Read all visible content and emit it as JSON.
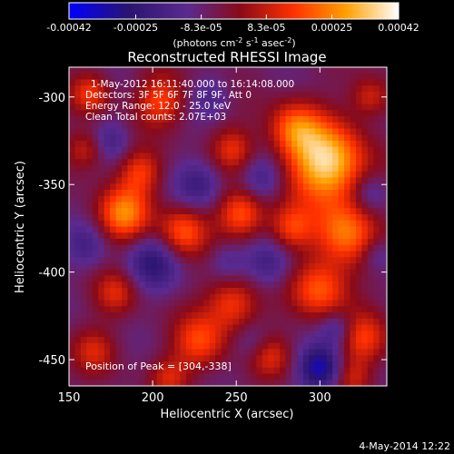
{
  "chart_data": {
    "type": "heatmap",
    "title": "Reconstructed RHESSI Image",
    "xlabel": "Heliocentric X (arcsec)",
    "ylabel": "Heliocentric Y (arcsec)",
    "xlim": [
      150,
      340
    ],
    "ylim": [
      -465,
      -283
    ],
    "x_ticks": [
      150,
      200,
      250,
      300
    ],
    "y_ticks": [
      -300,
      -350,
      -400,
      -450
    ],
    "colorbar": {
      "min": -0.00042,
      "max": 0.00042,
      "ticks": [
        -0.00042,
        -0.00025,
        -8.3e-05,
        8.3e-05,
        0.00025,
        0.00042
      ],
      "tick_labels": [
        "-0.00042",
        "-0.00025",
        "-8.3e-05",
        "8.3e-05",
        "0.00025",
        "0.00042"
      ],
      "unit_label": "(photons cm-2 s-1 asec-2)"
    },
    "annotations": [
      "1-May-2012 16:11:40.000 to 16:14:08.000",
      "Detectors: 3F 5F 6F 7F 8F 9F, Att 0",
      "Energy Range: 12.0 - 25.0 keV",
      "Clean     Total counts: 2.07E+03"
    ],
    "peak_label": "Position of Peak = [304,-338]",
    "peak": [
      304,
      -338
    ],
    "peak_value": 0.00042,
    "grid": false,
    "colormap": [
      "#0000ff",
      "#2a1470",
      "#5a2a90",
      "#8a0a18",
      "#ff3000",
      "#ffa000",
      "#ffffff"
    ],
    "sources": [
      [
        304,
        -338,
        0.00042,
        16
      ],
      [
        183,
        -367,
        0.0003,
        11
      ],
      [
        253,
        -367,
        0.00026,
        10
      ],
      [
        218,
        -377,
        0.00024,
        10
      ],
      [
        315,
        -378,
        0.00028,
        13
      ],
      [
        205,
        -302,
        0.00022,
        10
      ],
      [
        285,
        -318,
        0.00024,
        11
      ],
      [
        248,
        -330,
        0.00018,
        9
      ],
      [
        193,
        -343,
        0.0002,
        9
      ],
      [
        163,
        -298,
        0.0002,
        8
      ],
      [
        160,
        -330,
        0.00016,
        8
      ],
      [
        300,
        -410,
        0.00025,
        12
      ],
      [
        248,
        -418,
        0.00022,
        11
      ],
      [
        228,
        -440,
        0.00022,
        11
      ],
      [
        270,
        -448,
        0.00016,
        9
      ],
      [
        326,
        -438,
        0.0002,
        10
      ],
      [
        178,
        -412,
        0.00016,
        9
      ],
      [
        165,
        -445,
        0.00015,
        9
      ],
      [
        330,
        -300,
        0.00016,
        8
      ],
      [
        320,
        -460,
        0.00014,
        8
      ],
      [
        210,
        -460,
        0.00015,
        8
      ],
      [
        283,
        -375,
        0.0002,
        9
      ],
      [
        228,
        -350,
        -0.00015,
        10
      ],
      [
        265,
        -347,
        -0.00014,
        9
      ],
      [
        330,
        -355,
        -0.00012,
        8
      ],
      [
        200,
        -395,
        -0.00018,
        11
      ],
      [
        270,
        -395,
        -0.00015,
        10
      ],
      [
        245,
        -395,
        -0.0001,
        8
      ],
      [
        300,
        -455,
        -0.00028,
        9
      ],
      [
        310,
        -432,
        -0.00014,
        7
      ],
      [
        175,
        -325,
        -0.00012,
        8
      ],
      [
        235,
        -300,
        -0.0001,
        8
      ],
      [
        160,
        -385,
        -0.00012,
        9
      ],
      [
        260,
        -440,
        -0.0001,
        8
      ],
      [
        335,
        -390,
        -0.00012,
        7
      ]
    ]
  },
  "footer": {
    "timestamp": "4-May-2014 12:22"
  }
}
